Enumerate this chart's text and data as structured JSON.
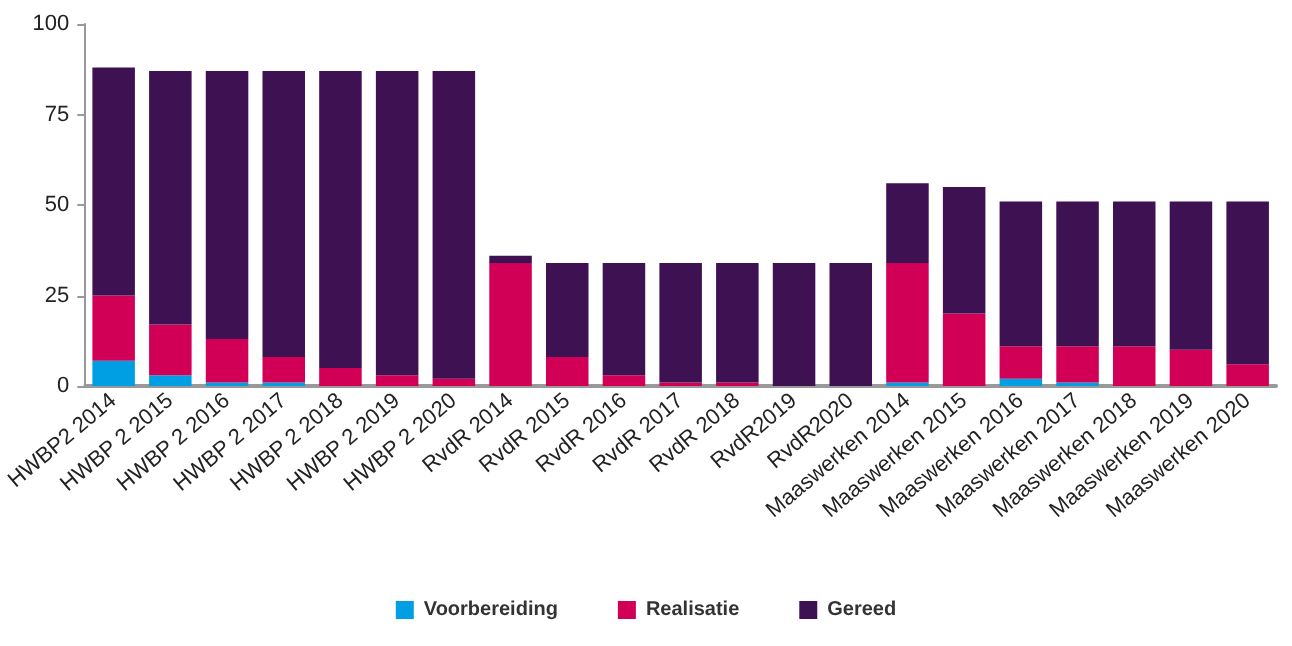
{
  "chart_data": {
    "type": "bar",
    "stacked": true,
    "categories": [
      "HWBP2 2014",
      "HWBP 2 2015",
      "HWBP 2 2016",
      "HWBP 2 2017",
      "HWBP 2 2018",
      "HWBP 2 2019",
      "HWBP 2 2020",
      "RvdR 2014",
      "RvdR 2015",
      "RvdR 2016",
      "RvdR 2017",
      "RvdR 2018",
      "RvdR2019",
      "RvdR2020",
      "Maaswerken 2014",
      "Maaswerken 2015",
      "Maaswerken 2016",
      "Maaswerken 2017",
      "Maaswerken 2018",
      "Maaswerken 2019",
      "Maaswerken 2020"
    ],
    "series": [
      {
        "name": "Voorbereiding",
        "color": "#009fe3",
        "values": [
          7,
          3,
          1,
          1,
          0,
          0,
          0,
          0,
          0,
          0,
          0,
          0,
          0,
          0,
          1,
          0,
          2,
          1,
          0,
          0,
          0
        ]
      },
      {
        "name": "Realisatie",
        "color": "#d10056",
        "values": [
          18,
          14,
          12,
          7,
          5,
          3,
          2,
          34,
          8,
          3,
          1,
          1,
          0,
          0,
          33,
          20,
          9,
          10,
          11,
          10,
          6
        ]
      },
      {
        "name": "Gereed",
        "color": "#3d1152",
        "values": [
          63,
          70,
          74,
          79,
          82,
          84,
          85,
          2,
          26,
          31,
          33,
          33,
          34,
          34,
          22,
          35,
          40,
          40,
          40,
          41,
          45
        ]
      }
    ],
    "ylim": [
      0,
      100
    ],
    "yticks": [
      0,
      25,
      50,
      75,
      100
    ],
    "grid": false,
    "legend": "bottom"
  }
}
